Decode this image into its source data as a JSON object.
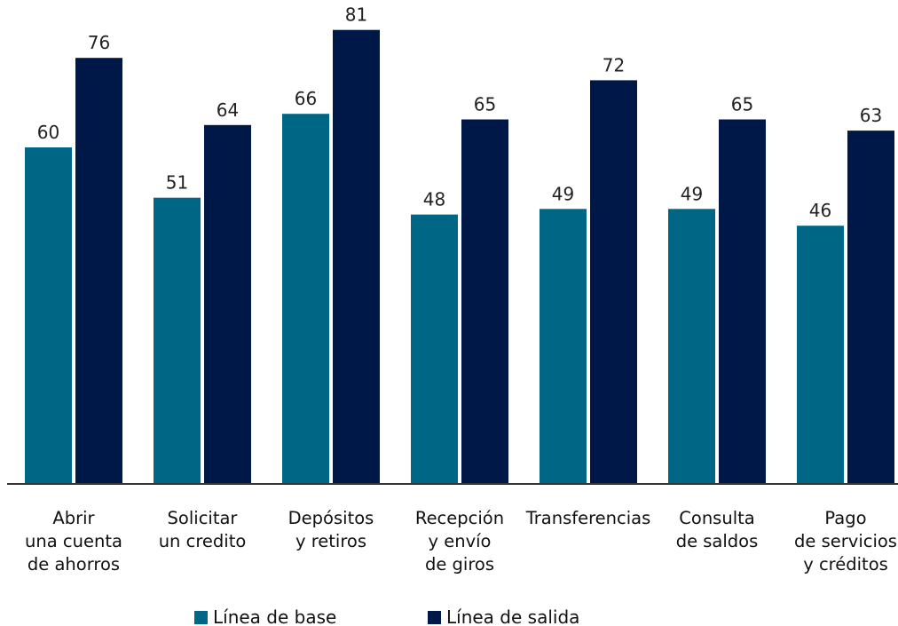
{
  "chart_data": {
    "type": "bar",
    "title": "",
    "xlabel": "",
    "ylabel": "",
    "ylim": [
      0,
      85
    ],
    "grid": false,
    "legend_position": "bottom",
    "categories": [
      [
        "Abrir",
        "una cuenta",
        "de ahorros"
      ],
      [
        "Solicitar",
        "un credito"
      ],
      [
        "Depósitos",
        "y retiros"
      ],
      [
        "Recepción",
        "y envío",
        "de giros"
      ],
      [
        "Transferencias"
      ],
      [
        "Consulta",
        "de saldos"
      ],
      [
        "Pago",
        "de servicios",
        "y créditos"
      ]
    ],
    "series": [
      {
        "name": "Línea de base",
        "color": "#006685",
        "values": [
          60,
          51,
          66,
          48,
          49,
          49,
          46
        ]
      },
      {
        "name": "Línea de salida",
        "color": "#001848",
        "values": [
          76,
          64,
          81,
          65,
          72,
          65,
          63
        ]
      }
    ]
  }
}
